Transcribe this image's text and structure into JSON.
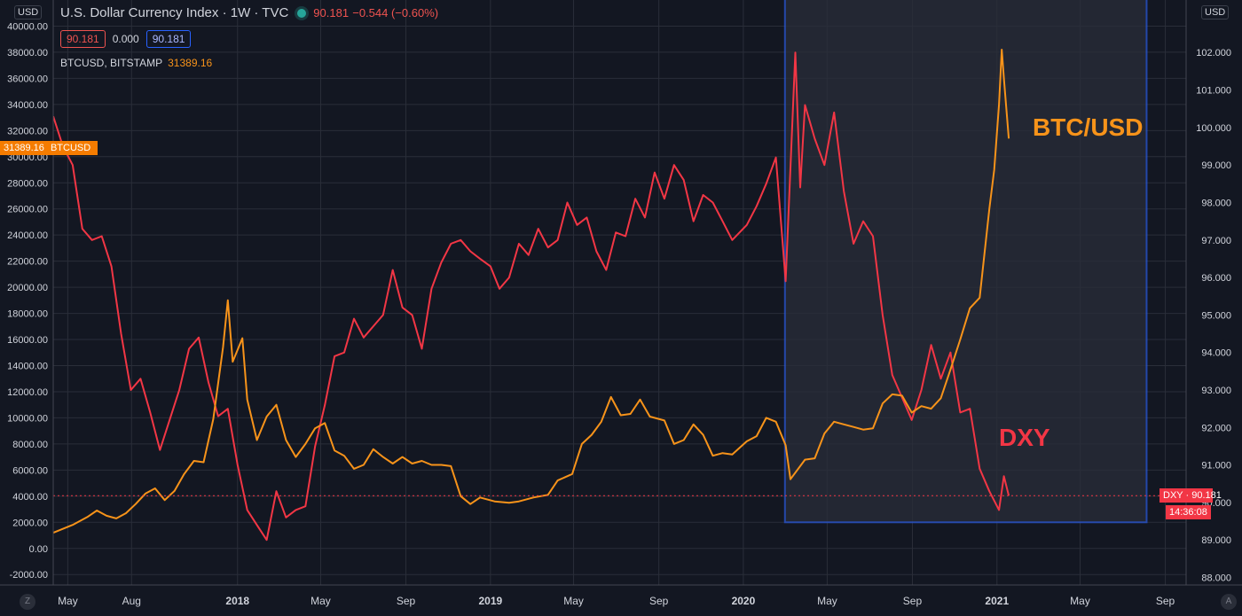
{
  "header": {
    "title": "U.S. Dollar Currency Index · 1W · TVC",
    "price": "90.181",
    "change": "−0.544 (−0.60%)",
    "box_open": "90.181",
    "box_diff": "0.000",
    "box_close": "90.181",
    "secondary": "BTCUSD, BITSTAMP",
    "secondary_value": "31389.16"
  },
  "axis_currency_left": "USD",
  "axis_currency_right": "USD",
  "price_tags": {
    "btc_value": "31389.16",
    "btc_label": "BTCUSD",
    "dxy_label": "DXY",
    "dxy_value": "90.181",
    "countdown": "14:36:08"
  },
  "annotations": {
    "btc": "BTC/USD",
    "dxy": "DXY"
  },
  "corner_buttons": {
    "left": "Z",
    "right": "A"
  },
  "colors": {
    "background": "#131722",
    "grid": "#2a2e39",
    "dxy_line": "#f23645",
    "btc_line": "#f7931a",
    "highlight_fill": "#2a2e39",
    "highlight_border": "#2962ff"
  },
  "chart_data": {
    "type": "line",
    "grid": true,
    "x_ticks": [
      {
        "label": "May",
        "date": "2017-05"
      },
      {
        "label": "Aug",
        "date": "2017-08"
      },
      {
        "label": "2018",
        "date": "2018-01"
      },
      {
        "label": "May",
        "date": "2018-05"
      },
      {
        "label": "Sep",
        "date": "2018-09"
      },
      {
        "label": "2019",
        "date": "2019-01"
      },
      {
        "label": "May",
        "date": "2019-05"
      },
      {
        "label": "Sep",
        "date": "2019-09"
      },
      {
        "label": "2020",
        "date": "2020-01"
      },
      {
        "label": "May",
        "date": "2020-05"
      },
      {
        "label": "Sep",
        "date": "2020-09"
      },
      {
        "label": "2021",
        "date": "2021-01"
      },
      {
        "label": "May",
        "date": "2021-05"
      },
      {
        "label": "Sep",
        "date": "2021-09"
      }
    ],
    "x_range": [
      "2017-04-10",
      "2021-10-01"
    ],
    "left_axis": {
      "series": "BTCUSD",
      "range": [
        -2800,
        42000
      ],
      "ticks": [
        -2000,
        0,
        2000,
        4000,
        6000,
        8000,
        10000,
        12000,
        14000,
        16000,
        18000,
        20000,
        22000,
        24000,
        26000,
        28000,
        30000,
        32000,
        34000,
        36000,
        38000,
        40000
      ]
    },
    "right_axis": {
      "series": "DXY",
      "range": [
        87.8,
        103.4
      ],
      "ticks": [
        88,
        89,
        90,
        91,
        92,
        93,
        94,
        95,
        96,
        97,
        98,
        99,
        100,
        101,
        102
      ]
    },
    "highlight_range": {
      "x": [
        "2020-03-01",
        "2021-08-05"
      ],
      "btc": [
        2000,
        42000
      ]
    },
    "series": [
      {
        "name": "DXY",
        "axis": "right",
        "points": [
          [
            "2017-04-10",
            100.3
          ],
          [
            "2017-04-24",
            99.5
          ],
          [
            "2017-05-08",
            99.0
          ],
          [
            "2017-05-22",
            97.3
          ],
          [
            "2017-06-05",
            97.0
          ],
          [
            "2017-06-19",
            97.1
          ],
          [
            "2017-07-03",
            96.3
          ],
          [
            "2017-07-17",
            94.5
          ],
          [
            "2017-07-31",
            93.0
          ],
          [
            "2017-08-14",
            93.3
          ],
          [
            "2017-08-28",
            92.4
          ],
          [
            "2017-09-11",
            91.4
          ],
          [
            "2017-09-25",
            92.2
          ],
          [
            "2017-10-09",
            93.0
          ],
          [
            "2017-10-23",
            94.1
          ],
          [
            "2017-11-06",
            94.4
          ],
          [
            "2017-11-20",
            93.2
          ],
          [
            "2017-12-04",
            92.3
          ],
          [
            "2017-12-18",
            92.5
          ],
          [
            "2018-01-01",
            91.0
          ],
          [
            "2018-01-15",
            89.8
          ],
          [
            "2018-01-29",
            89.4
          ],
          [
            "2018-02-12",
            89.0
          ],
          [
            "2018-02-26",
            90.3
          ],
          [
            "2018-03-12",
            89.6
          ],
          [
            "2018-03-26",
            89.8
          ],
          [
            "2018-04-09",
            89.9
          ],
          [
            "2018-04-23",
            91.5
          ],
          [
            "2018-05-07",
            92.6
          ],
          [
            "2018-05-21",
            93.9
          ],
          [
            "2018-06-04",
            94.0
          ],
          [
            "2018-06-18",
            94.9
          ],
          [
            "2018-07-02",
            94.4
          ],
          [
            "2018-07-16",
            94.7
          ],
          [
            "2018-07-30",
            95.0
          ],
          [
            "2018-08-13",
            96.2
          ],
          [
            "2018-08-27",
            95.2
          ],
          [
            "2018-09-10",
            95.0
          ],
          [
            "2018-09-24",
            94.1
          ],
          [
            "2018-10-08",
            95.7
          ],
          [
            "2018-10-22",
            96.4
          ],
          [
            "2018-11-05",
            96.9
          ],
          [
            "2018-11-19",
            97.0
          ],
          [
            "2018-12-03",
            96.7
          ],
          [
            "2018-12-17",
            96.5
          ],
          [
            "2019-01-01",
            96.3
          ],
          [
            "2019-01-14",
            95.7
          ],
          [
            "2019-01-28",
            96.0
          ],
          [
            "2019-02-11",
            96.9
          ],
          [
            "2019-02-25",
            96.6
          ],
          [
            "2019-03-11",
            97.3
          ],
          [
            "2019-03-25",
            96.8
          ],
          [
            "2019-04-08",
            97.0
          ],
          [
            "2019-04-22",
            98.0
          ],
          [
            "2019-05-06",
            97.4
          ],
          [
            "2019-05-20",
            97.6
          ],
          [
            "2019-06-03",
            96.7
          ],
          [
            "2019-06-17",
            96.2
          ],
          [
            "2019-07-01",
            97.2
          ],
          [
            "2019-07-15",
            97.1
          ],
          [
            "2019-07-29",
            98.1
          ],
          [
            "2019-08-12",
            97.6
          ],
          [
            "2019-08-26",
            98.8
          ],
          [
            "2019-09-09",
            98.1
          ],
          [
            "2019-09-23",
            99.0
          ],
          [
            "2019-10-07",
            98.6
          ],
          [
            "2019-10-21",
            97.5
          ],
          [
            "2019-11-04",
            98.2
          ],
          [
            "2019-11-18",
            98.0
          ],
          [
            "2019-12-02",
            97.5
          ],
          [
            "2019-12-16",
            97.0
          ],
          [
            "2020-01-06",
            97.4
          ],
          [
            "2020-01-20",
            97.9
          ],
          [
            "2020-02-03",
            98.5
          ],
          [
            "2020-02-17",
            99.2
          ],
          [
            "2020-03-02",
            95.9
          ],
          [
            "2020-03-16",
            102.0
          ],
          [
            "2020-03-23",
            98.4
          ],
          [
            "2020-03-30",
            100.6
          ],
          [
            "2020-04-13",
            99.7
          ],
          [
            "2020-04-27",
            99.0
          ],
          [
            "2020-05-11",
            100.4
          ],
          [
            "2020-05-25",
            98.3
          ],
          [
            "2020-06-08",
            96.9
          ],
          [
            "2020-06-22",
            97.5
          ],
          [
            "2020-07-06",
            97.1
          ],
          [
            "2020-07-20",
            95.0
          ],
          [
            "2020-08-03",
            93.4
          ],
          [
            "2020-08-17",
            92.8
          ],
          [
            "2020-08-31",
            92.2
          ],
          [
            "2020-09-14",
            93.0
          ],
          [
            "2020-09-28",
            94.2
          ],
          [
            "2020-10-12",
            93.3
          ],
          [
            "2020-10-26",
            94.0
          ],
          [
            "2020-11-09",
            92.4
          ],
          [
            "2020-11-23",
            92.5
          ],
          [
            "2020-12-07",
            90.9
          ],
          [
            "2020-12-21",
            90.3
          ],
          [
            "2021-01-04",
            89.8
          ],
          [
            "2021-01-11",
            90.7
          ],
          [
            "2021-01-18",
            90.18
          ]
        ]
      },
      {
        "name": "BTCUSD",
        "axis": "left",
        "points": [
          [
            "2017-04-10",
            1200
          ],
          [
            "2017-05-08",
            1800
          ],
          [
            "2017-05-29",
            2400
          ],
          [
            "2017-06-12",
            2900
          ],
          [
            "2017-06-26",
            2500
          ],
          [
            "2017-07-10",
            2300
          ],
          [
            "2017-07-24",
            2700
          ],
          [
            "2017-08-07",
            3400
          ],
          [
            "2017-08-21",
            4200
          ],
          [
            "2017-09-04",
            4600
          ],
          [
            "2017-09-18",
            3700
          ],
          [
            "2017-10-02",
            4400
          ],
          [
            "2017-10-16",
            5700
          ],
          [
            "2017-10-30",
            6700
          ],
          [
            "2017-11-13",
            6600
          ],
          [
            "2017-11-27",
            9900
          ],
          [
            "2017-12-11",
            15400
          ],
          [
            "2017-12-18",
            19000
          ],
          [
            "2017-12-25",
            14300
          ],
          [
            "2018-01-08",
            16100
          ],
          [
            "2018-01-15",
            11400
          ],
          [
            "2018-01-29",
            8300
          ],
          [
            "2018-02-12",
            10100
          ],
          [
            "2018-02-26",
            11000
          ],
          [
            "2018-03-12",
            8300
          ],
          [
            "2018-03-26",
            7000
          ],
          [
            "2018-04-09",
            8000
          ],
          [
            "2018-04-23",
            9200
          ],
          [
            "2018-05-07",
            9600
          ],
          [
            "2018-05-21",
            7500
          ],
          [
            "2018-06-04",
            7100
          ],
          [
            "2018-06-18",
            6100
          ],
          [
            "2018-07-02",
            6400
          ],
          [
            "2018-07-16",
            7600
          ],
          [
            "2018-07-30",
            7000
          ],
          [
            "2018-08-13",
            6500
          ],
          [
            "2018-08-27",
            7000
          ],
          [
            "2018-09-10",
            6500
          ],
          [
            "2018-09-24",
            6700
          ],
          [
            "2018-10-08",
            6400
          ],
          [
            "2018-10-22",
            6400
          ],
          [
            "2018-11-05",
            6300
          ],
          [
            "2018-11-19",
            4000
          ],
          [
            "2018-12-03",
            3400
          ],
          [
            "2018-12-17",
            3900
          ],
          [
            "2019-01-07",
            3600
          ],
          [
            "2019-01-28",
            3500
          ],
          [
            "2019-02-11",
            3600
          ],
          [
            "2019-03-04",
            3900
          ],
          [
            "2019-03-25",
            4100
          ],
          [
            "2019-04-08",
            5200
          ],
          [
            "2019-04-29",
            5700
          ],
          [
            "2019-05-13",
            8000
          ],
          [
            "2019-05-27",
            8700
          ],
          [
            "2019-06-10",
            9700
          ],
          [
            "2019-06-24",
            11600
          ],
          [
            "2019-07-08",
            10200
          ],
          [
            "2019-07-22",
            10300
          ],
          [
            "2019-08-05",
            11400
          ],
          [
            "2019-08-19",
            10100
          ],
          [
            "2019-09-09",
            9800
          ],
          [
            "2019-09-23",
            8000
          ],
          [
            "2019-10-07",
            8300
          ],
          [
            "2019-10-21",
            9500
          ],
          [
            "2019-11-04",
            8700
          ],
          [
            "2019-11-18",
            7100
          ],
          [
            "2019-12-02",
            7300
          ],
          [
            "2019-12-16",
            7200
          ],
          [
            "2020-01-06",
            8200
          ],
          [
            "2020-01-20",
            8600
          ],
          [
            "2020-02-03",
            10000
          ],
          [
            "2020-02-17",
            9700
          ],
          [
            "2020-03-02",
            7900
          ],
          [
            "2020-03-09",
            5300
          ],
          [
            "2020-03-30",
            6800
          ],
          [
            "2020-04-13",
            6900
          ],
          [
            "2020-04-27",
            8800
          ],
          [
            "2020-05-11",
            9700
          ],
          [
            "2020-05-25",
            9500
          ],
          [
            "2020-06-08",
            9300
          ],
          [
            "2020-06-22",
            9100
          ],
          [
            "2020-07-06",
            9200
          ],
          [
            "2020-07-20",
            11100
          ],
          [
            "2020-08-03",
            11800
          ],
          [
            "2020-08-17",
            11700
          ],
          [
            "2020-08-31",
            10400
          ],
          [
            "2020-09-14",
            10900
          ],
          [
            "2020-09-28",
            10700
          ],
          [
            "2020-10-12",
            11500
          ],
          [
            "2020-10-26",
            13700
          ],
          [
            "2020-11-09",
            16000
          ],
          [
            "2020-11-23",
            18400
          ],
          [
            "2020-12-07",
            19200
          ],
          [
            "2020-12-21",
            26000
          ],
          [
            "2020-12-28",
            29000
          ],
          [
            "2021-01-04",
            34000
          ],
          [
            "2021-01-08",
            38200
          ],
          [
            "2021-01-11",
            36000
          ],
          [
            "2021-01-18",
            31389
          ]
        ]
      }
    ]
  }
}
